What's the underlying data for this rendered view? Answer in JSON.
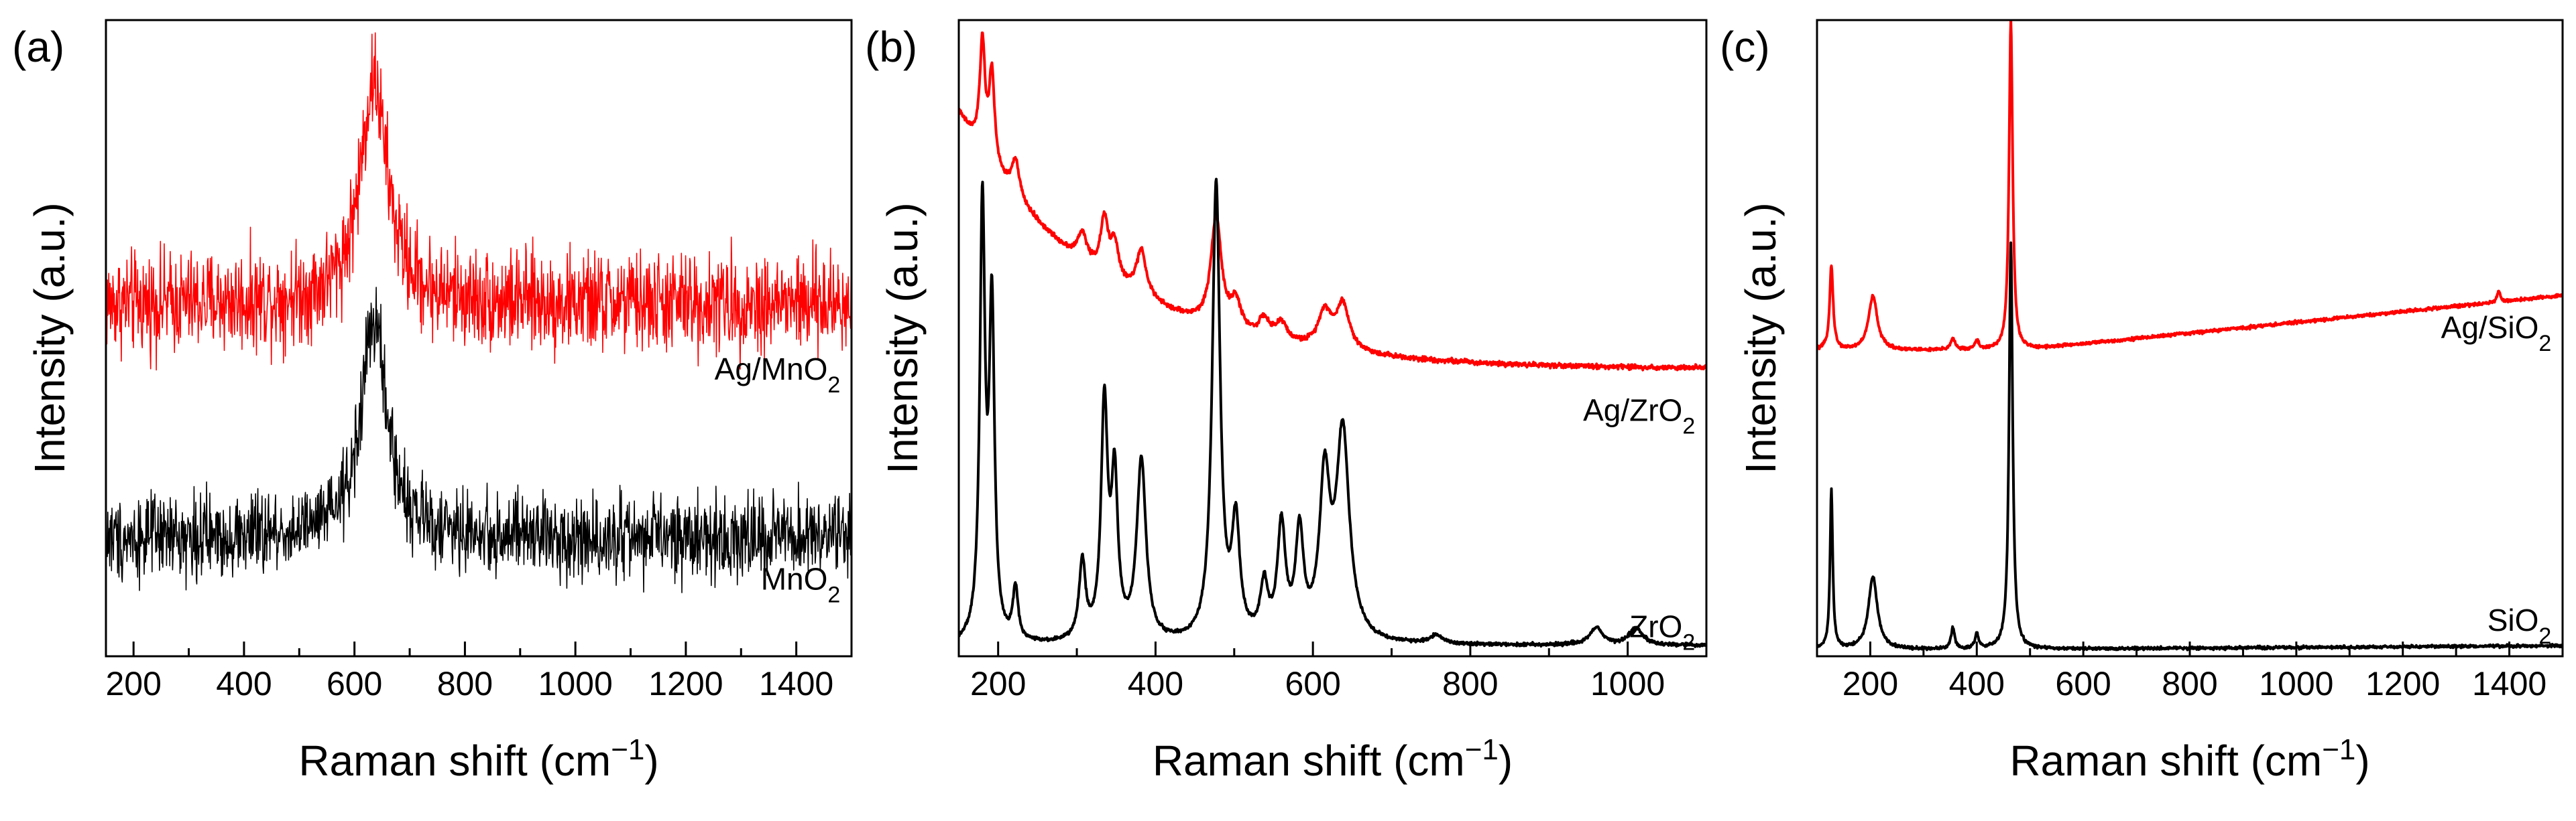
{
  "chart_data": [
    {
      "panel": "(a)",
      "type": "line",
      "xlabel": "Raman shift (cm⁻¹)",
      "ylabel": "Intensity (a.u.)",
      "xlim": [
        150,
        1500
      ],
      "xticks": [
        200,
        400,
        600,
        800,
        1000,
        1200,
        1400
      ],
      "series": [
        {
          "name": "Ag/MnO2",
          "label_main": "Ag/MnO",
          "label_sub": "2",
          "color": "#ff0000",
          "baseline": 0.5,
          "noise": 0.25,
          "slope": 0,
          "peaks": [
            {
              "x": 635,
              "h": 0.75,
              "w": 30
            }
          ]
        },
        {
          "name": "MnO2",
          "label_main": "MnO",
          "label_sub": "2",
          "color": "#000000",
          "baseline": 0.18,
          "noise": 0.09,
          "slope": 0,
          "peaks": [
            {
              "x": 635,
              "h": 0.32,
              "w": 28
            }
          ]
        }
      ]
    },
    {
      "panel": "(b)",
      "type": "line",
      "xlabel": "Raman shift (cm⁻¹)",
      "ylabel": "Intensity (a.u.)",
      "xlim": [
        150,
        1100
      ],
      "xticks": [
        200,
        400,
        600,
        800,
        1000
      ],
      "series": [
        {
          "name": "Ag/ZrO2",
          "label_main": "Ag/ZrO",
          "label_sub": "2",
          "color": "#ff0000",
          "baseline": 0.42,
          "noise": 0.004,
          "slope": 0,
          "background": {
            "amp": 0.28,
            "decay": 180,
            "start": 150
          },
          "peaks": [
            {
              "x": 180,
              "h": 0.12,
              "w": 4
            },
            {
              "x": 192,
              "h": 0.1,
              "w": 4
            },
            {
              "x": 222,
              "h": 0.04,
              "w": 6
            },
            {
              "x": 307,
              "h": 0.03,
              "w": 7
            },
            {
              "x": 335,
              "h": 0.06,
              "w": 6
            },
            {
              "x": 348,
              "h": 0.04,
              "w": 6
            },
            {
              "x": 382,
              "h": 0.05,
              "w": 8
            },
            {
              "x": 477,
              "h": 0.12,
              "w": 8
            },
            {
              "x": 502,
              "h": 0.03,
              "w": 8
            },
            {
              "x": 538,
              "h": 0.02,
              "w": 8
            },
            {
              "x": 560,
              "h": 0.02,
              "w": 8
            },
            {
              "x": 615,
              "h": 0.04,
              "w": 10
            },
            {
              "x": 638,
              "h": 0.05,
              "w": 10
            }
          ]
        },
        {
          "name": "ZrO2",
          "label_main": "ZrO",
          "label_sub": "2",
          "color": "#000000",
          "baseline": 0.02,
          "noise": 0.003,
          "slope": 0,
          "peaks": [
            {
              "x": 180,
              "h": 0.5,
              "w": 4
            },
            {
              "x": 192,
              "h": 0.38,
              "w": 4
            },
            {
              "x": 222,
              "h": 0.06,
              "w": 4
            },
            {
              "x": 307,
              "h": 0.09,
              "w": 5
            },
            {
              "x": 335,
              "h": 0.27,
              "w": 5
            },
            {
              "x": 348,
              "h": 0.18,
              "w": 5
            },
            {
              "x": 382,
              "h": 0.21,
              "w": 7
            },
            {
              "x": 477,
              "h": 0.53,
              "w": 6
            },
            {
              "x": 502,
              "h": 0.13,
              "w": 6
            },
            {
              "x": 538,
              "h": 0.06,
              "w": 6
            },
            {
              "x": 560,
              "h": 0.13,
              "w": 6
            },
            {
              "x": 583,
              "h": 0.12,
              "w": 6
            },
            {
              "x": 615,
              "h": 0.18,
              "w": 8
            },
            {
              "x": 638,
              "h": 0.24,
              "w": 10
            },
            {
              "x": 757,
              "h": 0.01,
              "w": 10
            },
            {
              "x": 960,
              "h": 0.02,
              "w": 10
            },
            {
              "x": 1010,
              "h": 0.02,
              "w": 10
            }
          ]
        }
      ]
    },
    {
      "panel": "(c)",
      "type": "line",
      "xlabel": "Raman shift (cm⁻¹)",
      "ylabel": "Intensity (a.u.)",
      "xlim": [
        100,
        1500
      ],
      "xticks": [
        200,
        400,
        600,
        800,
        1000,
        1200,
        1400
      ],
      "series": [
        {
          "name": "Ag/SiO2",
          "label_main": "Ag/SiO",
          "label_sub": "2",
          "color": "#ff0000",
          "baseline": 0.38,
          "noise": 0.004,
          "slope": 9e-05,
          "slope_start": 480,
          "peaks": [
            {
              "x": 127,
              "h": 0.14,
              "w": 4
            },
            {
              "x": 205,
              "h": 0.09,
              "w": 10
            },
            {
              "x": 355,
              "h": 0.02,
              "w": 5
            },
            {
              "x": 400,
              "h": 0.015,
              "w": 5
            },
            {
              "x": 464,
              "h": 0.55,
              "w": 4
            },
            {
              "x": 1380,
              "h": 0.02,
              "w": 3
            }
          ]
        },
        {
          "name": "SiO2",
          "label_main": "SiO",
          "label_sub": "2",
          "color": "#000000",
          "baseline": 0.02,
          "noise": 0.003,
          "slope": 5e-06,
          "slope_start": 480,
          "peaks": [
            {
              "x": 127,
              "h": 0.22,
              "w": 3
            },
            {
              "x": 205,
              "h": 0.1,
              "w": 10
            },
            {
              "x": 355,
              "h": 0.03,
              "w": 4
            },
            {
              "x": 400,
              "h": 0.02,
              "w": 4
            },
            {
              "x": 464,
              "h": 0.56,
              "w": 4
            }
          ]
        }
      ]
    }
  ]
}
